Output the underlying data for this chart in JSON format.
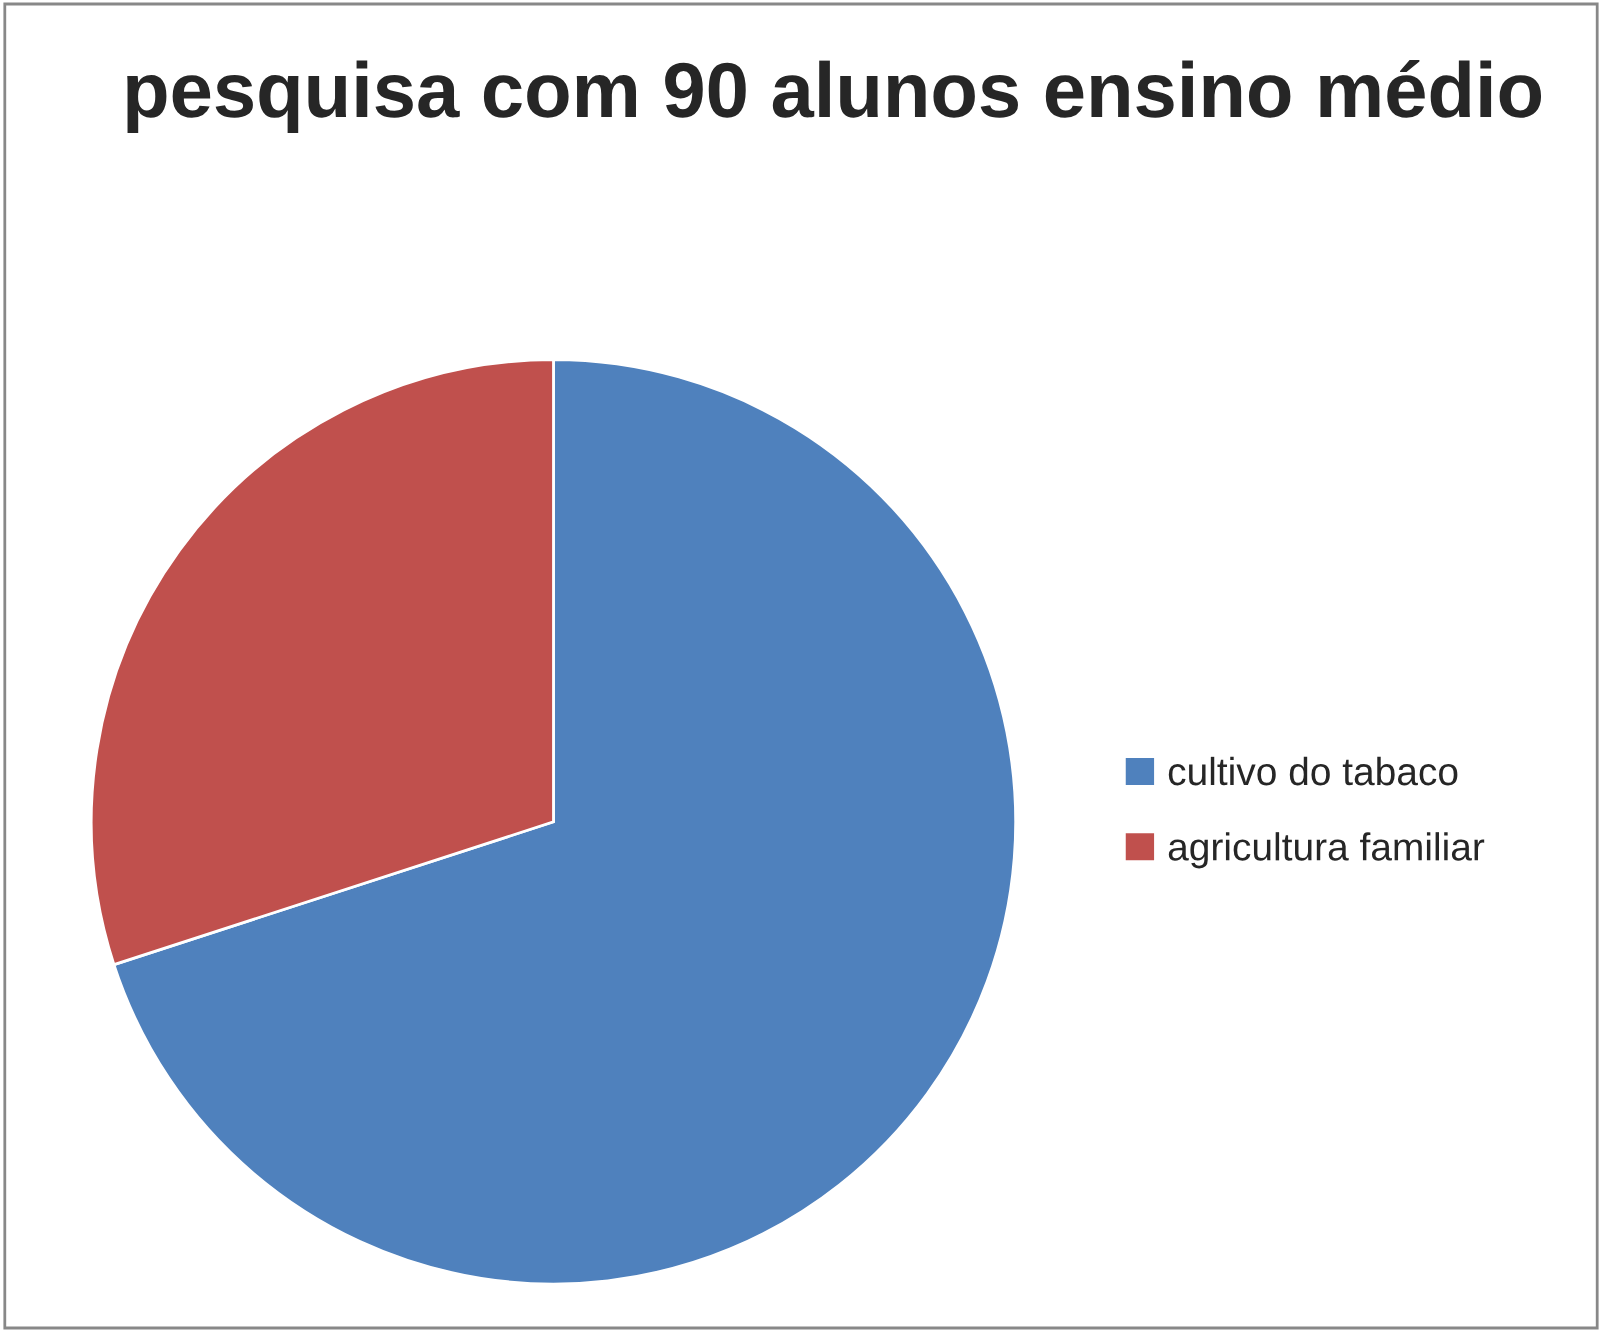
{
  "chart_data": {
    "type": "pie",
    "title": "pesquisa com 90 alunos ensino médio",
    "categories": [
      "cultivo do tabaco",
      "agricultura familiar"
    ],
    "values": [
      70,
      30
    ],
    "colors": [
      "#4f81bd",
      "#c0504d"
    ],
    "legend": "right"
  }
}
